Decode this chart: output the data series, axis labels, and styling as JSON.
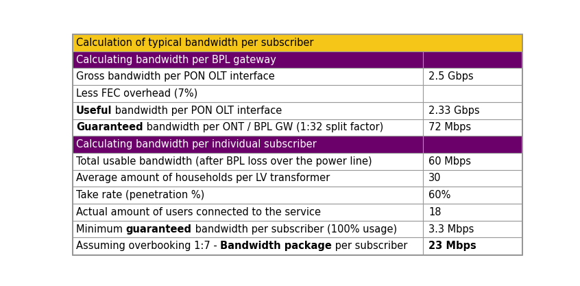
{
  "title": "Calculation of typical bandwidth per subscriber",
  "title_bg": "#F5C518",
  "title_text_color": "#000000",
  "header1_bg": "#6B006B",
  "header1_text": "Calculating bandwidth per BPL gateway",
  "header2_bg": "#6B006B",
  "header2_text": "Calculating bandwidth per individual subscriber",
  "header_text_color": "#FFFFFF",
  "col_split": 0.78,
  "rows": [
    {
      "left_segments": [
        [
          "Gross bandwidth per PON OLT interface",
          false
        ]
      ],
      "right": "2.5 Gbps",
      "right_bold": false
    },
    {
      "left_segments": [
        [
          "Less FEC overhead (7%)",
          false
        ]
      ],
      "right": "",
      "right_bold": false
    },
    {
      "left_segments": [
        [
          "Useful",
          true
        ],
        [
          " bandwidth per PON OLT interface",
          false
        ]
      ],
      "right": "2.33 Gbps",
      "right_bold": false
    },
    {
      "left_segments": [
        [
          "Guaranteed",
          true
        ],
        [
          " bandwidth per ONT / BPL GW (1:32 split factor)",
          false
        ]
      ],
      "right": "72 Mbps",
      "right_bold": false
    },
    {
      "left_segments": [
        [
          "Total usable bandwidth (after BPL loss over the power line)",
          false
        ]
      ],
      "right": "60 Mbps",
      "right_bold": false
    },
    {
      "left_segments": [
        [
          "Average amount of households per LV transformer",
          false
        ]
      ],
      "right": "30",
      "right_bold": false
    },
    {
      "left_segments": [
        [
          "Take rate (penetration %)",
          false
        ]
      ],
      "right": "60%",
      "right_bold": false
    },
    {
      "left_segments": [
        [
          "Actual amount of users connected to the service",
          false
        ]
      ],
      "right": "18",
      "right_bold": false
    },
    {
      "left_segments": [
        [
          "Minimum ",
          false
        ],
        [
          "guaranteed",
          true
        ],
        [
          " bandwidth per subscriber (100% usage)",
          false
        ]
      ],
      "right": "3.3 Mbps",
      "right_bold": false
    },
    {
      "left_segments": [
        [
          "Assuming overbooking 1:7 - ",
          false
        ],
        [
          "Bandwidth package",
          true
        ],
        [
          " per subscriber",
          false
        ]
      ],
      "right": "23 Mbps",
      "right_bold": true
    }
  ],
  "border_color": "#999999",
  "row_bg": "#FFFFFF",
  "font_size": 10.5,
  "row_text_color": "#000000",
  "total_rows": 13
}
